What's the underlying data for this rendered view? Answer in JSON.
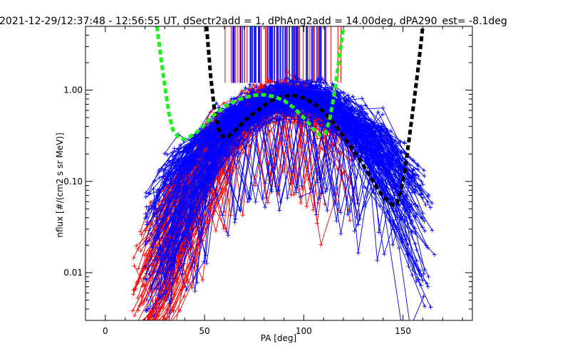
{
  "chart_data": {
    "type": "line",
    "title": "2021-12-29/12:37:48 - 12:56:55 UT, dSectr2add = 1, dPhAng2add = 14.00deg, dPA290_est=  -8.1deg",
    "xlabel": "PA [deg]",
    "ylabel": "nflux [#/(cm2 s sr MeV)]",
    "xlim": [
      -10,
      185
    ],
    "ylim": [
      0.003,
      5.0
    ],
    "yscale": "log",
    "grid": false,
    "x_ticks": [
      0,
      50,
      100,
      150
    ],
    "x_tick_labels": [
      "0",
      "50",
      "100",
      "150"
    ],
    "y_ticks": [
      0.01,
      0.1,
      1.0
    ],
    "y_tick_labels": [
      "0.01",
      "0.10",
      "1.00"
    ],
    "colors": {
      "red": "#ff0000",
      "blue": "#0000ff",
      "black": "#000000",
      "green": "#22ee22"
    },
    "series": [
      {
        "color": "#ff0000",
        "style": "lines+plus",
        "description_profile": "narrow peak near 90 deg",
        "peak_x": 90,
        "x_range": [
          13,
          130
        ],
        "ymin_range": [
          0.004,
          0.2
        ]
      },
      {
        "color": "#0000ff",
        "style": "lines+plus",
        "description_profile": "broad peak near 95 deg",
        "peak_x": 95,
        "x_range": [
          20,
          167
        ],
        "ymin_range": [
          0.004,
          0.2
        ]
      },
      {
        "color": "#000000",
        "style": "dashed-thick",
        "x": [
          51,
          53,
          55,
          57,
          59,
          62,
          66,
          70,
          75,
          80,
          85,
          90,
          95,
          100,
          105,
          110,
          115,
          120,
          125,
          130,
          135,
          140,
          145,
          147,
          149,
          151,
          153,
          155,
          158,
          160
        ],
        "y": [
          5.0,
          1.5,
          0.6,
          0.38,
          0.31,
          0.31,
          0.37,
          0.46,
          0.56,
          0.68,
          0.79,
          0.86,
          0.87,
          0.82,
          0.72,
          0.58,
          0.44,
          0.31,
          0.22,
          0.15,
          0.1,
          0.068,
          0.055,
          0.058,
          0.08,
          0.13,
          0.28,
          0.6,
          2.0,
          5.0
        ]
      },
      {
        "color": "#22ee22",
        "style": "dashed-thick",
        "x": [
          26,
          28,
          30,
          32,
          34,
          37,
          40,
          45,
          50,
          55,
          60,
          65,
          70,
          75,
          80,
          85,
          90,
          95,
          100,
          105,
          108,
          111,
          113,
          115,
          117,
          119,
          120
        ],
        "y": [
          5.0,
          2.3,
          1.1,
          0.56,
          0.37,
          0.3,
          0.29,
          0.33,
          0.42,
          0.54,
          0.66,
          0.75,
          0.83,
          0.88,
          0.89,
          0.85,
          0.77,
          0.64,
          0.5,
          0.37,
          0.32,
          0.34,
          0.47,
          0.8,
          1.6,
          3.4,
          5.0
        ]
      }
    ],
    "vertical_markers": {
      "red": {
        "color": "#ff0000",
        "x_range": [
          53,
          119
        ],
        "count": 45,
        "ybottom": 1.2
      },
      "blue": {
        "color": "#0000ff",
        "x_range": [
          64,
          111
        ],
        "count": 70,
        "ybottom": 1.2
      }
    }
  }
}
